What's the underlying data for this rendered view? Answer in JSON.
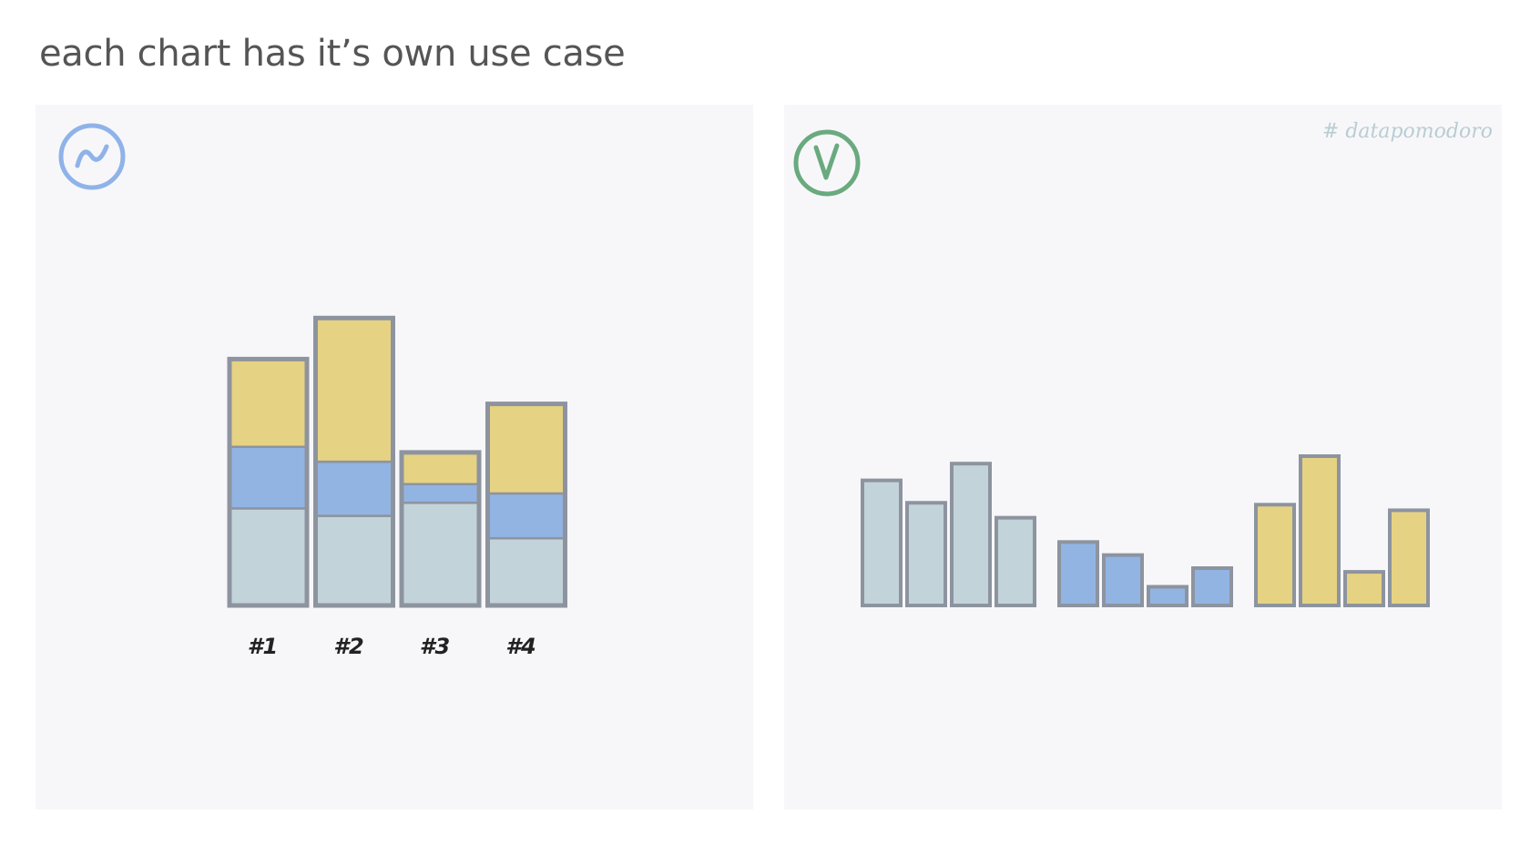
{
  "title": "each chart has it’s own use case",
  "watermark": "# datapomodoro",
  "colors": {
    "segment_bottom": "#c3d3da",
    "segment_middle": "#92b4e3",
    "segment_top": "#e6d283",
    "outline": "#8d949f",
    "panel_bg": "#f7f7fa",
    "badge_meh": "#8fb3e8",
    "badge_ok": "#6aaa7e"
  },
  "badges": {
    "left": {
      "icon": "meh-tilde-icon",
      "glyph": "~",
      "meaning": "so-so"
    },
    "right": {
      "icon": "check-v-icon",
      "glyph": "V",
      "meaning": "good"
    }
  },
  "chart_data": [
    {
      "type": "bar",
      "stacked": true,
      "categories": [
        "#1",
        "#2",
        "#3",
        "#4"
      ],
      "series": [
        {
          "color": "#c3d3da",
          "values": [
            5.2,
            4.8,
            5.5,
            3.6
          ]
        },
        {
          "color": "#92b4e3",
          "values": [
            3.3,
            2.9,
            1.0,
            2.4
          ]
        },
        {
          "color": "#e6d283",
          "values": [
            4.7,
            7.7,
            1.7,
            4.8
          ]
        }
      ],
      "ylim": [
        0,
        16
      ]
    },
    {
      "type": "bar",
      "grouped_by_series": true,
      "groups": [
        {
          "color": "#c3d3da",
          "values": [
            6.7,
            5.5,
            7.6,
            4.7
          ]
        },
        {
          "color": "#92b4e3",
          "values": [
            3.4,
            2.7,
            1.0,
            2.0
          ]
        },
        {
          "color": "#e6d283",
          "values": [
            5.4,
            8.0,
            1.8,
            5.1
          ]
        }
      ],
      "ylim": [
        0,
        16
      ]
    }
  ]
}
